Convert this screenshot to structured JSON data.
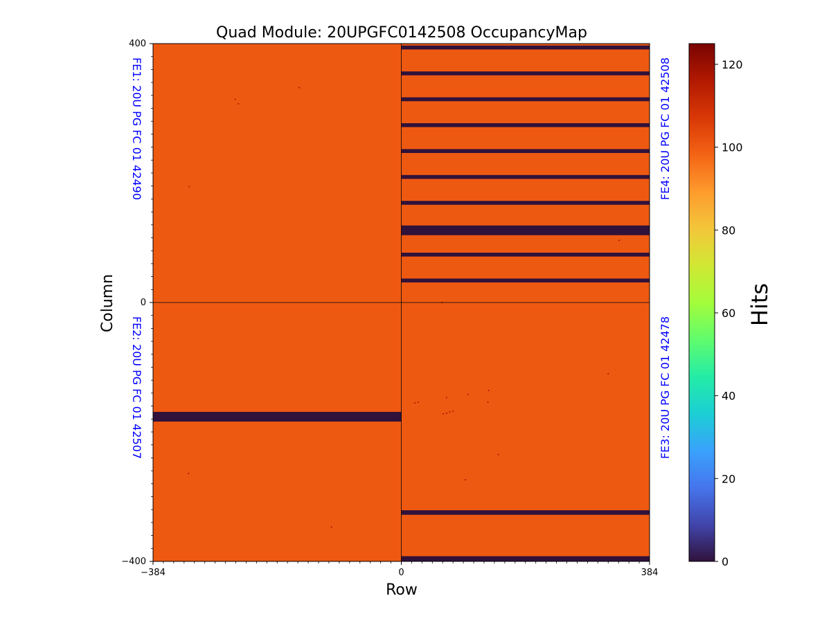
{
  "chart_data": {
    "type": "heatmap",
    "title": "Quad Module: 20UPGFC0142508 OccupancyMap",
    "xlabel": "Row",
    "ylabel": "Column",
    "xlim": [
      -384,
      384
    ],
    "ylim": [
      -400,
      400
    ],
    "x_ticks": [
      "−384",
      "0",
      "384"
    ],
    "y_ticks": [
      "400",
      "0",
      "−400"
    ],
    "x_tick_values": [
      -384,
      0,
      384
    ],
    "y_tick_values": [
      400,
      0,
      -400
    ],
    "colormap": "turbo",
    "colorbar": {
      "label": "Hits",
      "range": [
        0,
        125
      ],
      "ticks": [
        "0",
        "20",
        "40",
        "60",
        "80",
        "100",
        "120"
      ],
      "tick_values": [
        0,
        20,
        40,
        60,
        80,
        100,
        120
      ]
    },
    "background_value": 100,
    "background_color": "#ee5911",
    "empty_color": "#30123b",
    "front_ends": [
      {
        "name": "FE1: 20U PG FC 01 42490",
        "x_range": [
          -384,
          0
        ],
        "y_range": [
          0,
          400
        ]
      },
      {
        "name": "FE4: 20U PG FC 01 42508",
        "x_range": [
          0,
          384
        ],
        "y_range": [
          0,
          400
        ]
      },
      {
        "name": "FE2: 20U PG FC 01 42507",
        "x_range": [
          -384,
          0
        ],
        "y_range": [
          -400,
          0
        ]
      },
      {
        "name": "FE3: 20U PG FC 01 42478",
        "x_range": [
          0,
          384
        ],
        "y_range": [
          -400,
          0
        ]
      }
    ],
    "zero_hit_bands": [
      {
        "x_range": [
          0,
          384
        ],
        "y_range": [
          391,
          397
        ],
        "value": 0
      },
      {
        "x_range": [
          0,
          384
        ],
        "y_range": [
          351,
          357
        ],
        "value": 0
      },
      {
        "x_range": [
          0,
          384
        ],
        "y_range": [
          311,
          317
        ],
        "value": 0
      },
      {
        "x_range": [
          0,
          384
        ],
        "y_range": [
          271,
          277
        ],
        "value": 0
      },
      {
        "x_range": [
          0,
          384
        ],
        "y_range": [
          231,
          237
        ],
        "value": 0
      },
      {
        "x_range": [
          0,
          384
        ],
        "y_range": [
          191,
          197
        ],
        "value": 0
      },
      {
        "x_range": [
          0,
          384
        ],
        "y_range": [
          151,
          157
        ],
        "value": 0
      },
      {
        "x_range": [
          0,
          384
        ],
        "y_range": [
          104,
          119
        ],
        "value": 0
      },
      {
        "x_range": [
          0,
          384
        ],
        "y_range": [
          71,
          77
        ],
        "value": 0
      },
      {
        "x_range": [
          0,
          384
        ],
        "y_range": [
          31,
          37
        ],
        "value": 0
      },
      {
        "x_range": [
          -384,
          0
        ],
        "y_range": [
          -184,
          -169
        ],
        "value": 0
      },
      {
        "x_range": [
          0,
          384
        ],
        "y_range": [
          -328,
          -321
        ],
        "value": 0
      },
      {
        "x_range": [
          0,
          384
        ],
        "y_range": [
          -400,
          -392
        ],
        "value": 0
      }
    ],
    "hot_pixels": [
      {
        "x": -158,
        "y": 332,
        "value": 120
      },
      {
        "x": -257,
        "y": 314,
        "value": 120
      },
      {
        "x": -252,
        "y": 307,
        "value": 120
      },
      {
        "x": -328,
        "y": 179,
        "value": 120
      },
      {
        "x": 337,
        "y": 96,
        "value": 120
      },
      {
        "x": 63,
        "y": 0,
        "value": 120
      },
      {
        "x": 320,
        "y": -110,
        "value": 120
      },
      {
        "x": 135,
        "y": -136,
        "value": 120
      },
      {
        "x": 103,
        "y": -142,
        "value": 120
      },
      {
        "x": 70,
        "y": -147,
        "value": 120
      },
      {
        "x": 134,
        "y": -154,
        "value": 120
      },
      {
        "x": 21,
        "y": -155,
        "value": 120
      },
      {
        "x": 26,
        "y": -154,
        "value": 120
      },
      {
        "x": 65,
        "y": -172,
        "value": 120
      },
      {
        "x": 70,
        "y": -171,
        "value": 120
      },
      {
        "x": 75,
        "y": -169,
        "value": 120
      },
      {
        "x": 80,
        "y": -168,
        "value": 120
      },
      {
        "x": 150,
        "y": -235,
        "value": 120
      },
      {
        "x": -329,
        "y": -264,
        "value": 120
      },
      {
        "x": 99,
        "y": -274,
        "value": 120
      },
      {
        "x": -108,
        "y": -347,
        "value": 120
      }
    ]
  }
}
